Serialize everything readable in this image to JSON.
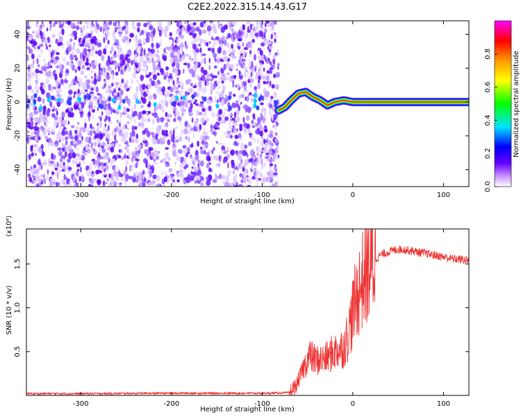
{
  "title": "C2E2.2022.315.14.43.G17",
  "chart_data": [
    {
      "type": "heatmap",
      "xlabel": "Height of straight line (km)",
      "ylabel": "Frequency (Hz)",
      "xlim": [
        -360,
        128
      ],
      "ylim": [
        -50,
        48
      ],
      "xticks": [
        -300,
        -200,
        -100,
        0,
        100
      ],
      "yticks": [
        -40,
        -20,
        0,
        20,
        40
      ],
      "colorbar": {
        "label": "Normalized spectral amplitude",
        "range": [
          0,
          1
        ],
        "ticks": [
          0.0,
          0.2,
          0.4,
          0.6,
          0.8
        ],
        "colors": [
          "#ffffff",
          "#cc99ff",
          "#6600ff",
          "#0000ff",
          "#00e5ff",
          "#00ff00",
          "#ffff00",
          "#ff9900",
          "#ff0000",
          "#ff00ff"
        ]
      },
      "noise_region_x": [
        -360,
        -82
      ],
      "signal_trace": [
        {
          "x": -82,
          "y": -5
        },
        {
          "x": -75,
          "y": -3
        },
        {
          "x": -68,
          "y": 1
        },
        {
          "x": -60,
          "y": 5
        },
        {
          "x": -52,
          "y": 6
        },
        {
          "x": -44,
          "y": 3
        },
        {
          "x": -36,
          "y": 1
        },
        {
          "x": -28,
          "y": -2
        },
        {
          "x": -20,
          "y": 0
        },
        {
          "x": -10,
          "y": 1
        },
        {
          "x": 0,
          "y": 0
        },
        {
          "x": 128,
          "y": 0
        }
      ],
      "grid": false
    },
    {
      "type": "line",
      "xlabel": "Height of straight line (km)",
      "ylabel": "SNR (10 * v/v)",
      "yscale_note": "(x10⁴)",
      "xlim": [
        -360,
        128
      ],
      "ylim": [
        0,
        1.9
      ],
      "xticks": [
        -300,
        -200,
        -100,
        0,
        100
      ],
      "yticks": [
        0.5,
        1.0,
        1.5
      ],
      "series": [
        {
          "color": "#ee3333",
          "x": [
            -360,
            -300,
            -200,
            -100,
            -70,
            -62,
            -55,
            -48,
            -40,
            -30,
            -20,
            -10,
            -5,
            0,
            5,
            10,
            15,
            20,
            25,
            30,
            40,
            50,
            60,
            70,
            80,
            90,
            100,
            110,
            120,
            128
          ],
          "y": [
            0.02,
            0.02,
            0.025,
            0.025,
            0.03,
            0.12,
            0.3,
            0.45,
            0.4,
            0.42,
            0.5,
            0.55,
            0.7,
            0.95,
            1.15,
            1.3,
            1.4,
            1.48,
            1.55,
            1.6,
            1.64,
            1.67,
            1.66,
            1.64,
            1.62,
            1.6,
            1.58,
            1.56,
            1.55,
            1.54
          ]
        }
      ],
      "grid": false
    }
  ]
}
